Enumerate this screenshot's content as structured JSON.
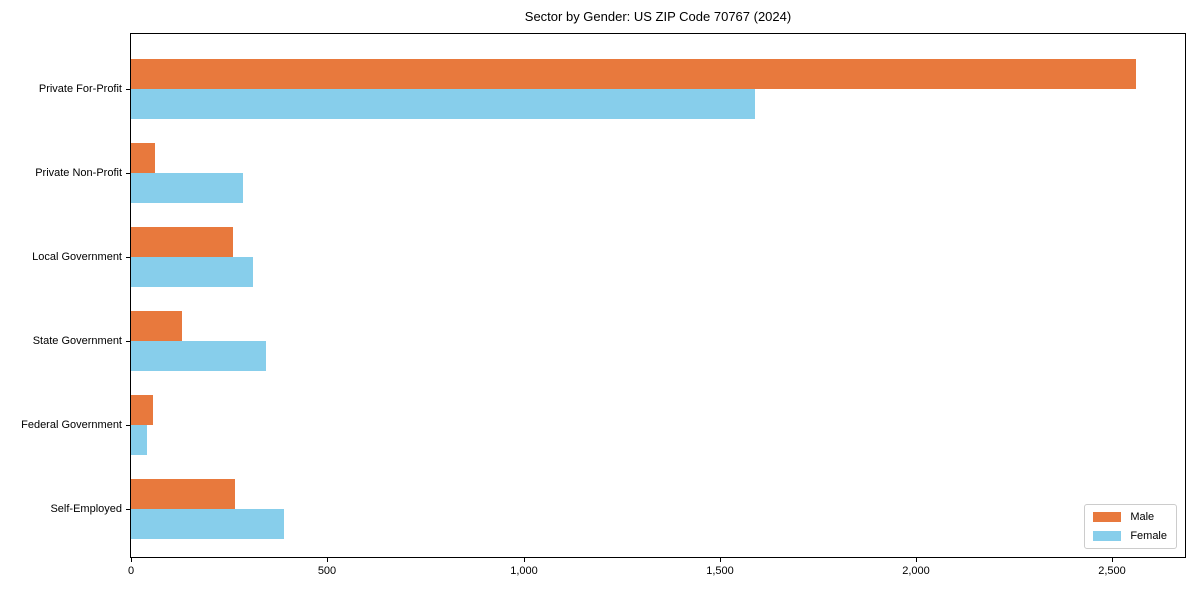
{
  "figure": {
    "title": "Sector by Gender: US ZIP Code 70767 (2024)"
  },
  "chart_data": {
    "type": "bar",
    "orientation": "horizontal",
    "title": "Sector by Gender: US ZIP Code 70767 (2024)",
    "categories": [
      "Private For-Profit",
      "Private Non-Profit",
      "Local Government",
      "State Government",
      "Federal Government",
      "Self-Employed"
    ],
    "series": [
      {
        "name": "Male",
        "color": "#e8793d",
        "values": [
          2560,
          60,
          260,
          130,
          55,
          265
        ]
      },
      {
        "name": "Female",
        "color": "#87ceeb",
        "values": [
          1590,
          285,
          310,
          345,
          40,
          390
        ]
      }
    ],
    "xlabel": "",
    "ylabel": "",
    "xlim": [
      0,
      2690
    ],
    "xticks": [
      0,
      500,
      1000,
      1500,
      2000,
      2500
    ],
    "xtick_labels": [
      "0",
      "500",
      "1,000",
      "1,500",
      "2,000",
      "2,500"
    ],
    "grid": false,
    "legend": {
      "position": "lower right",
      "entries": [
        "Male",
        "Female"
      ]
    }
  }
}
